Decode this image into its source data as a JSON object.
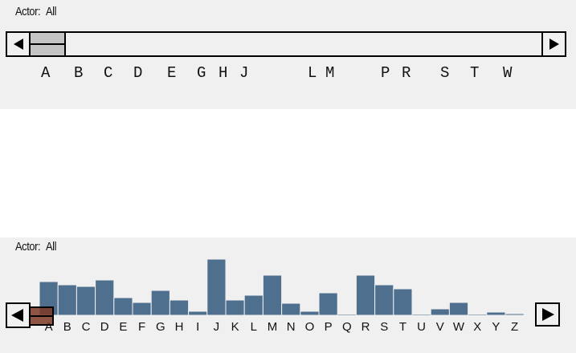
{
  "top_panel": {
    "actor_label": "Actor:",
    "actor_value": "All",
    "letters": [
      "A",
      "B",
      "C",
      "D",
      "E",
      "G",
      "H",
      "J",
      "L",
      "M",
      "P",
      "R",
      "S",
      "T",
      "W"
    ],
    "scroll_position": 0
  },
  "bottom_panel": {
    "actor_label": "Actor:",
    "actor_value": "All",
    "bar_color": "#4f6f8f",
    "thumb_color": "#7d3a26"
  },
  "chart_data": {
    "type": "bar",
    "categories": [
      "A",
      "B",
      "C",
      "D",
      "E",
      "F",
      "G",
      "H",
      "I",
      "J",
      "K",
      "L",
      "M",
      "N",
      "O",
      "P",
      "Q",
      "R",
      "S",
      "T",
      "U",
      "V",
      "W",
      "X",
      "Y",
      "Z"
    ],
    "values": [
      42,
      38,
      36,
      44,
      22,
      16,
      31,
      19,
      5,
      70,
      19,
      25,
      50,
      15,
      5,
      28,
      1,
      50,
      38,
      33,
      1,
      8,
      16,
      1,
      4,
      2
    ],
    "title": "",
    "xlabel": "",
    "ylabel": "",
    "ylim": [
      0,
      70
    ]
  }
}
